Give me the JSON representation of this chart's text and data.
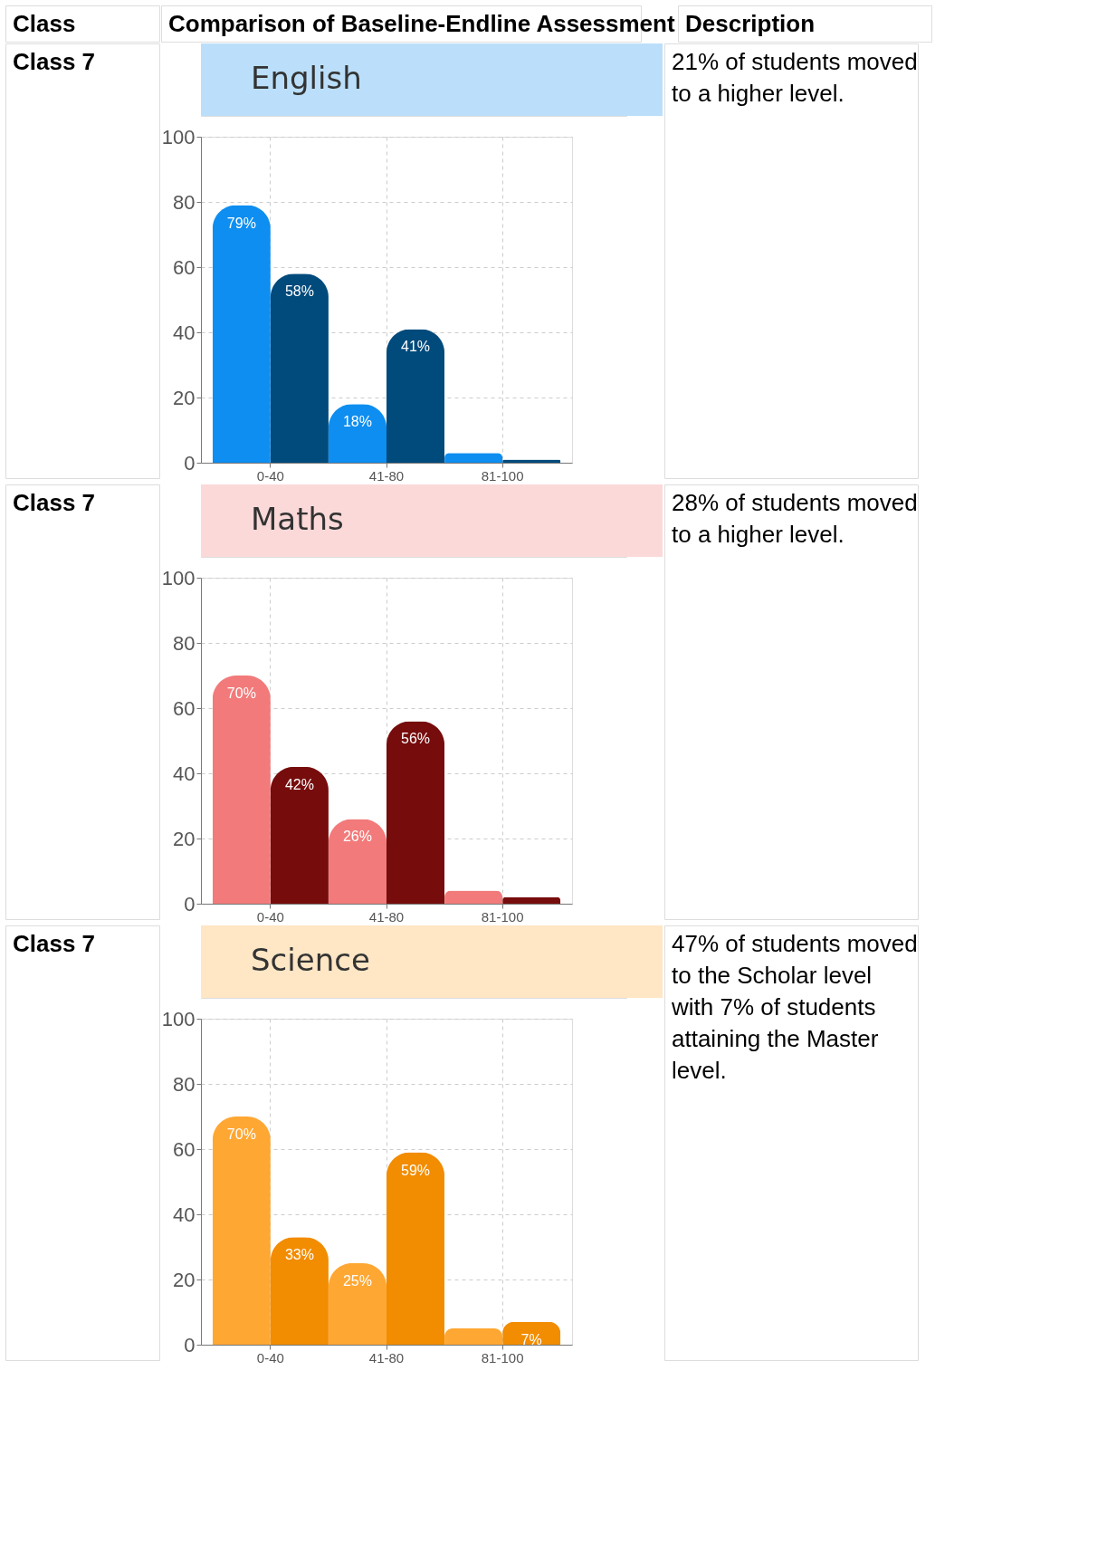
{
  "chart_data": [
    {
      "type": "bar",
      "title": "English",
      "categories": [
        "0-40",
        "41-80",
        "81-100"
      ],
      "ylim": [
        0,
        100
      ],
      "yticks": [
        0,
        20,
        40,
        60,
        80,
        100
      ],
      "grid": true,
      "legend": false,
      "series": [
        {
          "color": "#0d8ef0",
          "values": [
            79,
            18,
            3
          ],
          "value_labels": [
            "79%",
            "18%",
            null
          ]
        },
        {
          "color": "#004a7c",
          "values": [
            58,
            41,
            1
          ],
          "value_labels": [
            "58%",
            "41%",
            null
          ]
        }
      ],
      "annotations": [
        "Class",
        "Comparison of Baseline-Endline Assessment",
        "Description",
        "Class 7",
        "21% of students moved to a higher level."
      ]
    },
    {
      "type": "bar",
      "title": "Maths",
      "categories": [
        "0-40",
        "41-80",
        "81-100"
      ],
      "ylim": [
        0,
        100
      ],
      "yticks": [
        0,
        20,
        40,
        60,
        80,
        100
      ],
      "grid": true,
      "legend": false,
      "series": [
        {
          "color": "#f27a7a",
          "values": [
            70,
            26,
            4
          ],
          "value_labels": [
            "70%",
            "26%",
            null
          ]
        },
        {
          "color": "#760c0c",
          "values": [
            42,
            56,
            2
          ],
          "value_labels": [
            "42%",
            "56%",
            null
          ]
        }
      ],
      "annotations": [
        "Class 7",
        "28% of students moved to a higher level."
      ]
    },
    {
      "type": "bar",
      "title": "Science",
      "categories": [
        "0-40",
        "41-80",
        "81-100"
      ],
      "ylim": [
        0,
        100
      ],
      "yticks": [
        0,
        20,
        40,
        60,
        80,
        100
      ],
      "grid": true,
      "legend": false,
      "series": [
        {
          "color": "#ffa733",
          "values": [
            70,
            25,
            5
          ],
          "value_labels": [
            "70%",
            "25%",
            null
          ]
        },
        {
          "color": "#f28c00",
          "values": [
            33,
            59,
            7
          ],
          "value_labels": [
            "33%",
            "59%",
            "7%"
          ]
        }
      ],
      "annotations": [
        "Class 7",
        "47% of students moved to the Scholar level with 7% of students attaining the Master level."
      ]
    }
  ]
}
